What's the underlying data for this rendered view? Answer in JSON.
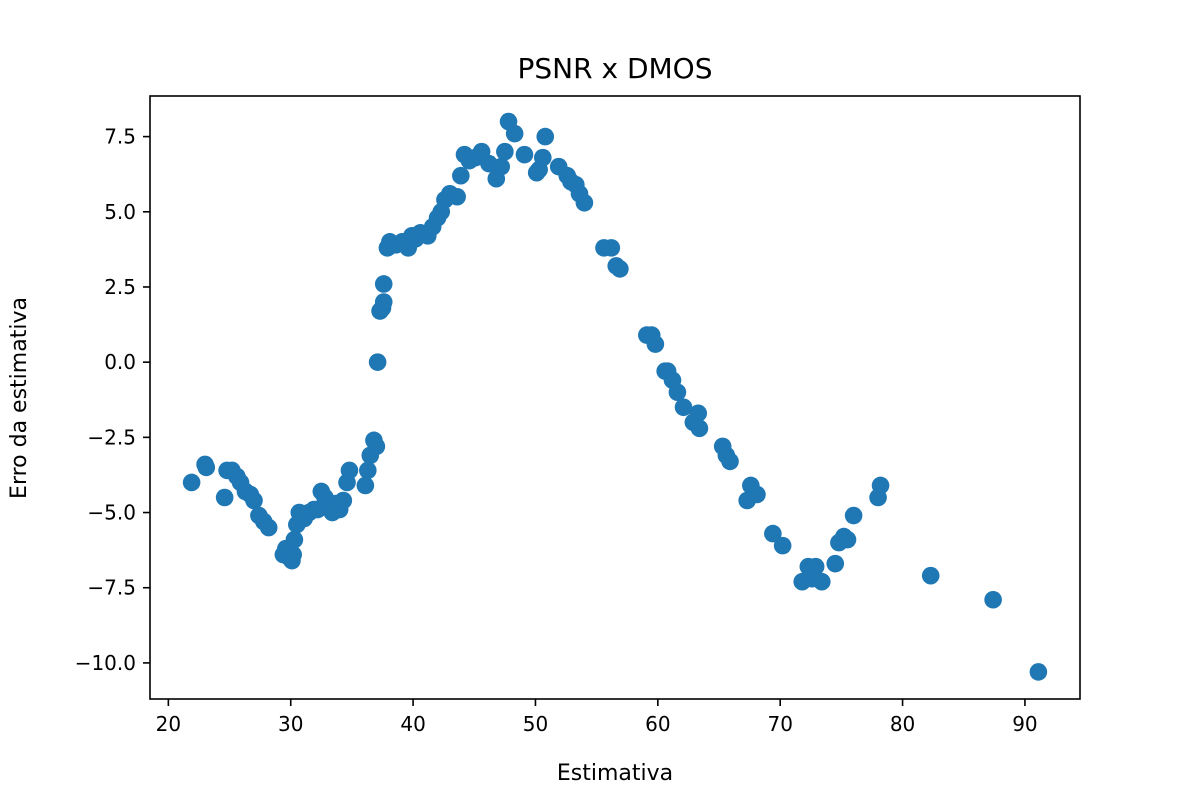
{
  "chart_data": {
    "type": "scatter",
    "title": "PSNR x DMOS",
    "xlabel": "Estimativa",
    "ylabel": "Erro da estimativa",
    "xlim": [
      18.5,
      94.5
    ],
    "ylim": [
      -11.2,
      8.85
    ],
    "xticks": [
      20,
      30,
      40,
      50,
      60,
      70,
      80,
      90
    ],
    "xtick_labels": [
      "20",
      "30",
      "40",
      "50",
      "60",
      "70",
      "80",
      "90"
    ],
    "yticks": [
      7.5,
      5.0,
      2.5,
      0.0,
      -2.5,
      -5.0,
      -7.5,
      -10.0
    ],
    "ytick_labels": [
      "7.5",
      "5.0",
      "2.5",
      "0.0",
      "−2.5",
      "−5.0",
      "−7.5",
      "−10.0"
    ],
    "grid": false,
    "marker_color": "#1f77b4",
    "series": [
      {
        "x": [
          21.9,
          23.0,
          23.1,
          24.6,
          24.8,
          25.2,
          25.6,
          25.9,
          26.3,
          26.7,
          27.0,
          27.4,
          27.8,
          28.2,
          29.4,
          29.6,
          29.9,
          30.1,
          30.2,
          30.3,
          30.5,
          30.7,
          31.1,
          31.5,
          31.9,
          32.2,
          32.5,
          32.8,
          33.1,
          33.4,
          33.7,
          34.0,
          34.3,
          34.6,
          34.8,
          36.1,
          36.3,
          36.5,
          36.8,
          37.0,
          37.1,
          37.3,
          37.5,
          37.6,
          37.6,
          37.9,
          38.1,
          38.6,
          39.1,
          39.6,
          39.9,
          40.2,
          40.6,
          41.2,
          41.6,
          42.0,
          42.3,
          42.6,
          43.0,
          43.6,
          43.9,
          44.2,
          44.6,
          45.1,
          45.6,
          46.2,
          46.8,
          47.2,
          47.5,
          47.8,
          48.3,
          49.1,
          50.1,
          50.3,
          50.6,
          50.8,
          51.9,
          52.6,
          52.9,
          53.3,
          53.6,
          54.0,
          55.6,
          56.2,
          56.6,
          56.9,
          59.1,
          59.5,
          59.8,
          60.6,
          60.8,
          61.2,
          61.6,
          62.1,
          62.9,
          63.3,
          63.4,
          65.3,
          65.6,
          65.9,
          67.3,
          67.6,
          68.1,
          69.4,
          70.2,
          71.8,
          72.3,
          72.6,
          72.9,
          73.4,
          74.5,
          74.8,
          75.2,
          75.5,
          76.0,
          78.0,
          78.2,
          82.3,
          87.4,
          91.1
        ],
        "y": [
          -4.0,
          -3.4,
          -3.5,
          -4.5,
          -3.6,
          -3.6,
          -3.8,
          -4.0,
          -4.3,
          -4.4,
          -4.6,
          -5.1,
          -5.3,
          -5.5,
          -6.4,
          -6.2,
          -6.5,
          -6.6,
          -6.4,
          -5.9,
          -5.4,
          -5.0,
          -5.2,
          -5.0,
          -4.9,
          -4.9,
          -4.3,
          -4.5,
          -4.8,
          -5.0,
          -4.7,
          -4.9,
          -4.6,
          -4.0,
          -3.6,
          -4.1,
          -3.6,
          -3.1,
          -2.6,
          -2.8,
          0.0,
          1.7,
          1.8,
          2.0,
          2.6,
          3.8,
          4.0,
          3.9,
          4.0,
          3.8,
          4.2,
          4.1,
          4.3,
          4.2,
          4.5,
          4.8,
          5.0,
          5.4,
          5.6,
          5.5,
          6.2,
          6.9,
          6.7,
          6.8,
          7.0,
          6.6,
          6.1,
          6.5,
          7.0,
          8.0,
          7.6,
          6.9,
          6.3,
          6.4,
          6.8,
          7.5,
          6.5,
          6.2,
          6.0,
          5.9,
          5.6,
          5.3,
          3.8,
          3.8,
          3.2,
          3.1,
          0.9,
          0.9,
          0.6,
          -0.3,
          -0.3,
          -0.6,
          -1.0,
          -1.5,
          -2.0,
          -1.7,
          -2.2,
          -2.8,
          -3.1,
          -3.3,
          -4.6,
          -4.1,
          -4.4,
          -5.7,
          -6.1,
          -7.3,
          -6.8,
          -7.2,
          -6.8,
          -7.3,
          -6.7,
          -6.0,
          -5.8,
          -5.9,
          -5.1,
          -4.5,
          -4.1,
          -7.1,
          -7.9,
          -10.3
        ]
      }
    ]
  }
}
